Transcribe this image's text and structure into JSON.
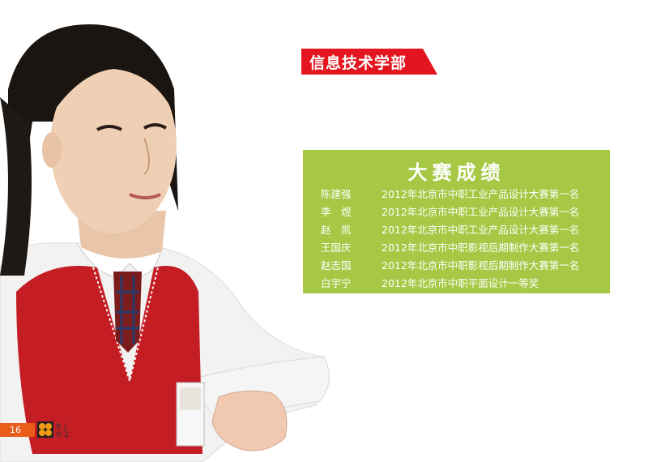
{
  "department": {
    "title": "信息技术学部"
  },
  "results": {
    "title": "大赛成绩",
    "rows": [
      {
        "name": "陈建强",
        "award": "2012年北京市中职工业产品设计大赛第一名"
      },
      {
        "name": "李　煜",
        "award": "2012年北京市中职工业产品设计大赛第一名"
      },
      {
        "name": "赵　凯",
        "award": "2012年北京市中职工业产品设计大赛第一名"
      },
      {
        "name": "王国庆",
        "award": "2012年北京市中职影视后期制作大赛第一名"
      },
      {
        "name": "赵志国",
        "award": "2012年北京市中职影视后期制作大赛第一名"
      },
      {
        "name": "白宇宁",
        "award": "2012年北京市中职平面设计一等奖"
      }
    ]
  },
  "footer": {
    "page_number": "16",
    "logo_letters": [
      "B",
      "J",
      "H",
      "Z"
    ]
  },
  "colors": {
    "banner_red": "#e3161f",
    "panel_green": "#a6c845",
    "page_orange": "#e85d1a"
  }
}
